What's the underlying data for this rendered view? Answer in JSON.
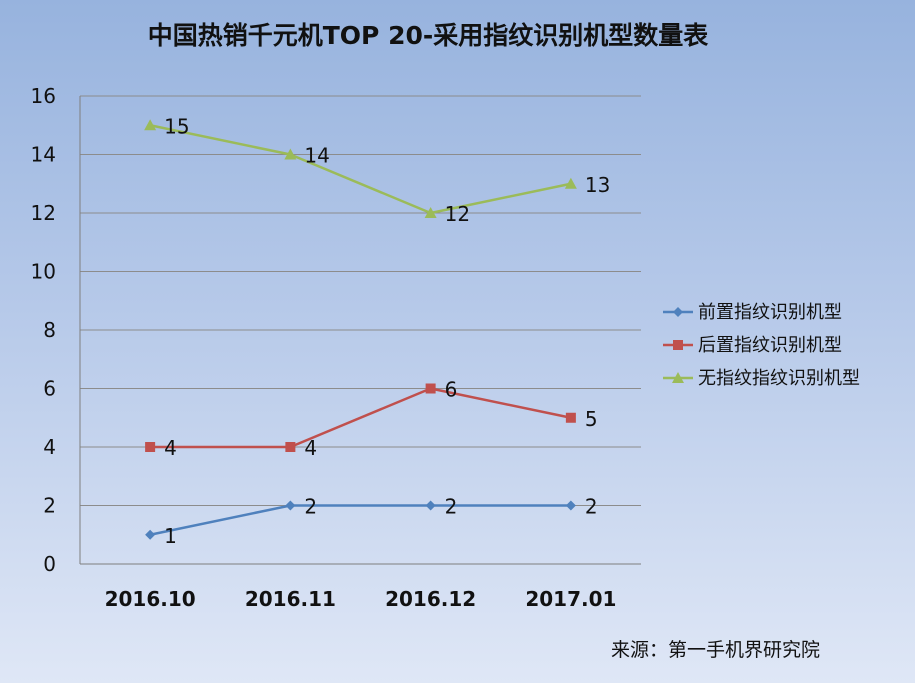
{
  "chart_data": {
    "type": "line",
    "title": "中国热销千元机TOP 20-采用指纹识别机型数量表",
    "categories": [
      "2016.10",
      "2016.11",
      "2016.12",
      "2017.01"
    ],
    "ylim": [
      0,
      16
    ],
    "yticks": [
      0,
      2,
      4,
      6,
      8,
      10,
      12,
      14,
      16
    ],
    "grid": true,
    "legend_position": "right",
    "series": [
      {
        "name": "前置指纹识别机型",
        "values": [
          1,
          2,
          2,
          2
        ],
        "color": "#4f81bd",
        "marker": "diamond"
      },
      {
        "name": "后置指纹识别机型",
        "values": [
          4,
          4,
          6,
          5
        ],
        "color": "#c0504d",
        "marker": "square"
      },
      {
        "name": "无指纹指纹识别机型",
        "values": [
          15,
          14,
          12,
          13
        ],
        "color": "#9bbb59",
        "marker": "triangle"
      }
    ],
    "source": "来源：第一手机界研究院"
  }
}
